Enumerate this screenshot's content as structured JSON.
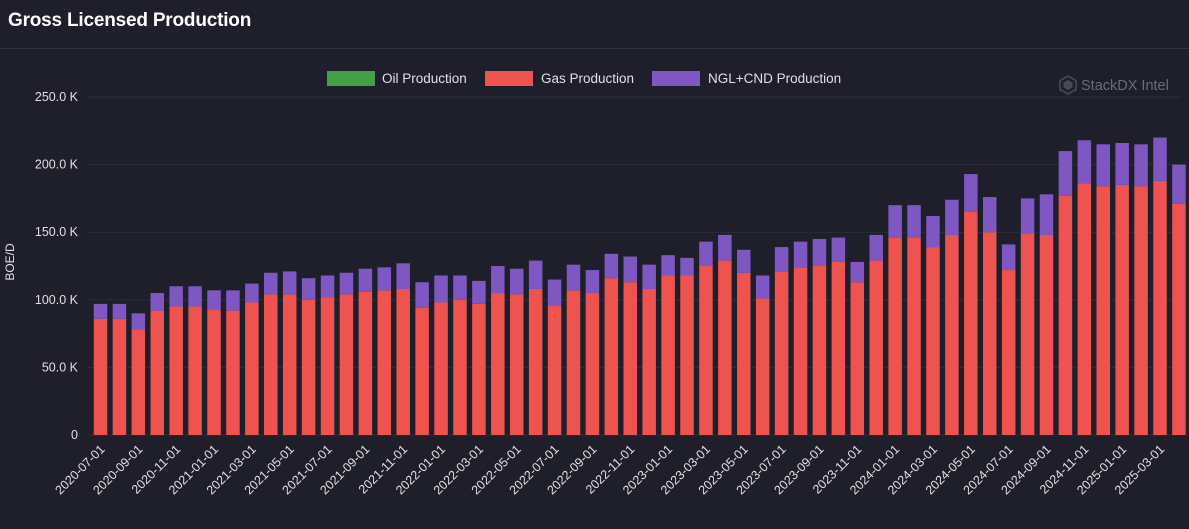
{
  "header": {
    "title": "Gross Licensed Production"
  },
  "watermark": "StackDX Intel",
  "colors": {
    "oil": "#43a047",
    "gas": "#ef5350",
    "ngl": "#7e57c2",
    "grid": "#2e2e3a",
    "text": "#e0e0e0"
  },
  "chart_data": {
    "type": "bar",
    "stacked": true,
    "ylabel": "BOE/D",
    "ylim": [
      0,
      250000
    ],
    "y_ticks": [
      {
        "value": 0,
        "label": "0"
      },
      {
        "value": 50000,
        "label": "50.0 K"
      },
      {
        "value": 100000,
        "label": "100.0 K"
      },
      {
        "value": 150000,
        "label": "150.0 K"
      },
      {
        "value": 200000,
        "label": "200.0 K"
      },
      {
        "value": 250000,
        "label": "250.0 K"
      }
    ],
    "legend_position": "top",
    "categories": [
      "2020-07-01",
      "2020-08-01",
      "2020-09-01",
      "2020-10-01",
      "2020-11-01",
      "2020-12-01",
      "2021-01-01",
      "2021-02-01",
      "2021-03-01",
      "2021-04-01",
      "2021-05-01",
      "2021-06-01",
      "2021-07-01",
      "2021-08-01",
      "2021-09-01",
      "2021-10-01",
      "2021-11-01",
      "2021-12-01",
      "2022-01-01",
      "2022-02-01",
      "2022-03-01",
      "2022-04-01",
      "2022-05-01",
      "2022-06-01",
      "2022-07-01",
      "2022-08-01",
      "2022-09-01",
      "2022-10-01",
      "2022-11-01",
      "2022-12-01",
      "2023-01-01",
      "2023-02-01",
      "2023-03-01",
      "2023-04-01",
      "2023-05-01",
      "2023-06-01",
      "2023-07-01",
      "2023-08-01",
      "2023-09-01",
      "2023-10-01",
      "2023-11-01",
      "2023-12-01",
      "2024-01-01",
      "2024-02-01",
      "2024-03-01",
      "2024-04-01",
      "2024-05-01",
      "2024-06-01",
      "2024-07-01",
      "2024-08-01",
      "2024-09-01",
      "2024-10-01",
      "2024-11-01",
      "2024-12-01",
      "2025-01-01",
      "2025-02-01",
      "2025-03-01",
      "2025-04-01"
    ],
    "tick_labels": [
      "2020-07-01",
      "2020-09-01",
      "2020-11-01",
      "2021-01-01",
      "2021-03-01",
      "2021-05-01",
      "2021-07-01",
      "2021-09-01",
      "2021-11-01",
      "2022-01-01",
      "2022-03-01",
      "2022-05-01",
      "2022-07-01",
      "2022-09-01",
      "2022-11-01",
      "2023-01-01",
      "2023-03-01",
      "2023-05-01",
      "2023-07-01",
      "2023-09-01",
      "2023-11-01",
      "2024-01-01",
      "2024-03-01",
      "2024-05-01",
      "2024-07-01",
      "2024-09-01",
      "2024-11-01",
      "2025-01-01",
      "2025-03-01"
    ],
    "series": [
      {
        "name": "Oil Production",
        "values": [
          0,
          0,
          0,
          0,
          0,
          0,
          0,
          0,
          0,
          0,
          0,
          0,
          0,
          0,
          0,
          0,
          0,
          0,
          0,
          0,
          0,
          0,
          0,
          0,
          0,
          0,
          0,
          0,
          0,
          0,
          0,
          0,
          0,
          0,
          0,
          0,
          0,
          0,
          0,
          0,
          0,
          0,
          0,
          0,
          0,
          0,
          0,
          0,
          0,
          0,
          0,
          0,
          0,
          0,
          0,
          0,
          0,
          0
        ]
      },
      {
        "name": "Gas Production",
        "values": [
          86000,
          86000,
          78000,
          92000,
          95000,
          95000,
          93000,
          92000,
          98000,
          104000,
          104000,
          100000,
          102000,
          104000,
          106000,
          107000,
          108000,
          94000,
          98000,
          100000,
          97000,
          105000,
          104000,
          108000,
          96000,
          107000,
          105000,
          116000,
          113000,
          108000,
          118000,
          118000,
          125000,
          129000,
          120000,
          101000,
          121000,
          124000,
          125000,
          128000,
          113000,
          129000,
          146000,
          146000,
          139000,
          148000,
          165000,
          150000,
          122000,
          149000,
          148000,
          177000,
          186000,
          184000,
          185000,
          184000,
          188000,
          171000
        ]
      },
      {
        "name": "NGL+CND Production",
        "values": [
          11000,
          11000,
          12000,
          13000,
          15000,
          15000,
          14000,
          15000,
          14000,
          16000,
          17000,
          16000,
          16000,
          16000,
          17000,
          17000,
          19000,
          19000,
          20000,
          18000,
          17000,
          20000,
          19000,
          21000,
          19000,
          19000,
          17000,
          18000,
          19000,
          18000,
          15000,
          13000,
          18000,
          19000,
          17000,
          17000,
          18000,
          19000,
          20000,
          18000,
          15000,
          19000,
          24000,
          24000,
          23000,
          26000,
          28000,
          26000,
          19000,
          26000,
          30000,
          33000,
          32000,
          31000,
          31000,
          31000,
          32000,
          29000
        ]
      }
    ]
  }
}
